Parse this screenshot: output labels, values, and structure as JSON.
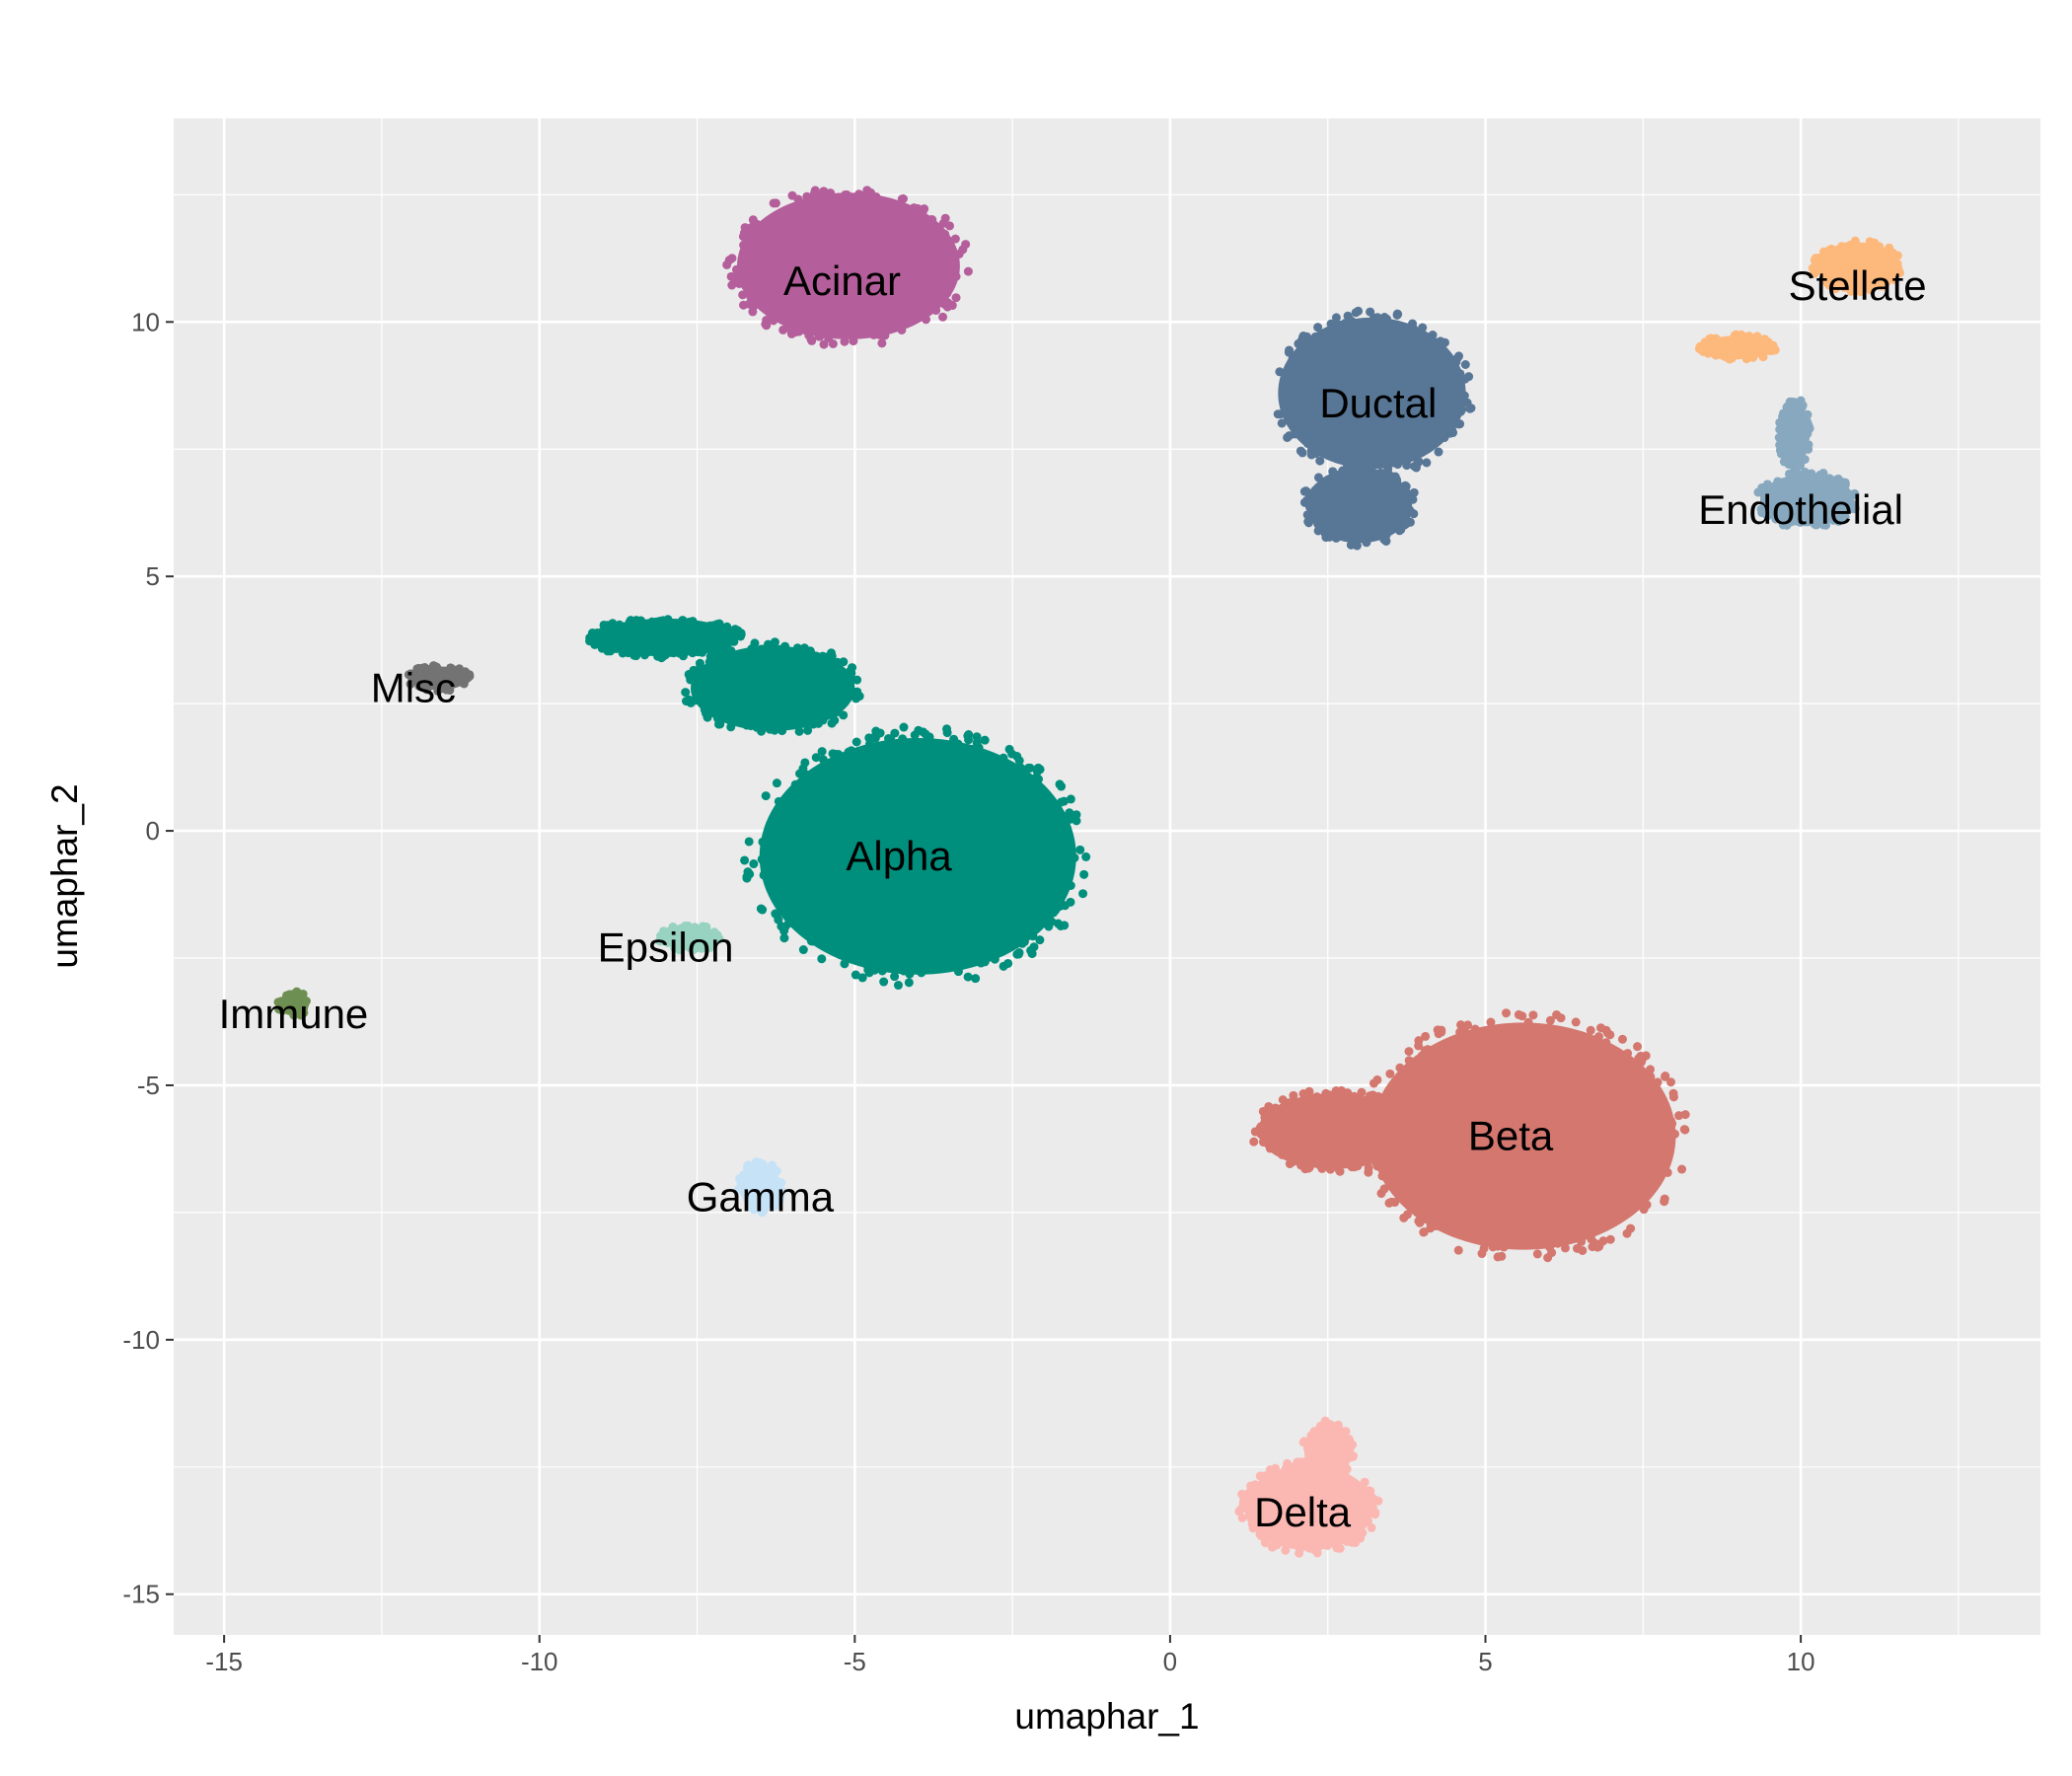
{
  "chart_data": {
    "type": "scatter",
    "title": "",
    "xlabel": "umaphar_1",
    "ylabel": "umaphar_2",
    "xlim": [
      -15.8,
      13.8
    ],
    "ylim": [
      -15.8,
      14.0
    ],
    "x_ticks": [
      -15,
      -10,
      -5,
      0,
      5,
      10
    ],
    "y_ticks": [
      -15,
      -10,
      -5,
      0,
      5,
      10
    ],
    "x_tick_labels": [
      "-15",
      "-10",
      "-5",
      "0",
      "5",
      "10"
    ],
    "y_tick_labels": [
      "-15",
      "-10",
      "-5",
      "0",
      "5",
      "10"
    ],
    "grid": true,
    "legend": "none",
    "background_color": "#ebebeb",
    "grid_color": "#ffffff",
    "clusters": [
      {
        "name": "Acinar",
        "color": "#b45f9b",
        "label_x": -5.2,
        "label_y": 10.8,
        "blobs": [
          {
            "cx": -5.1,
            "cy": 11.1,
            "rx": 1.9,
            "ry": 1.55
          }
        ]
      },
      {
        "name": "Ductal",
        "color": "#587696",
        "label_x": 3.3,
        "label_y": 8.4,
        "blobs": [
          {
            "cx": 3.2,
            "cy": 8.6,
            "rx": 1.6,
            "ry": 1.6
          },
          {
            "cx": 3.0,
            "cy": 6.4,
            "rx": 0.9,
            "ry": 0.8
          }
        ]
      },
      {
        "name": "Stellate",
        "color": "#fdb87c",
        "label_x": 10.9,
        "label_y": 10.7,
        "blobs": [
          {
            "cx": 10.9,
            "cy": 11.1,
            "rx": 0.7,
            "ry": 0.5
          },
          {
            "cx": 9.0,
            "cy": 9.5,
            "rx": 0.6,
            "ry": 0.25
          }
        ]
      },
      {
        "name": "Endothelial",
        "color": "#87a8be",
        "label_x": 10.0,
        "label_y": 6.3,
        "blobs": [
          {
            "cx": 10.1,
            "cy": 6.5,
            "rx": 0.8,
            "ry": 0.55
          },
          {
            "cx": 9.9,
            "cy": 7.8,
            "rx": 0.25,
            "ry": 0.7
          }
        ]
      },
      {
        "name": "Alpha",
        "color": "#008f7c",
        "label_x": -4.3,
        "label_y": -0.5,
        "blobs": [
          {
            "cx": -4.0,
            "cy": -0.5,
            "rx": 2.7,
            "ry": 2.5
          },
          {
            "cx": -6.3,
            "cy": 2.8,
            "rx": 1.4,
            "ry": 0.9
          },
          {
            "cx": -8.0,
            "cy": 3.8,
            "rx": 1.2,
            "ry": 0.4
          }
        ]
      },
      {
        "name": "Epsilon",
        "color": "#98d2c0",
        "label_x": -8.0,
        "label_y": -2.3,
        "blobs": [
          {
            "cx": -7.6,
            "cy": -2.1,
            "rx": 0.5,
            "ry": 0.25
          }
        ]
      },
      {
        "name": "Misc",
        "color": "#737373",
        "label_x": -12.0,
        "label_y": 2.8,
        "blobs": [
          {
            "cx": -11.6,
            "cy": 3.0,
            "rx": 0.5,
            "ry": 0.25
          }
        ]
      },
      {
        "name": "Immune",
        "color": "#6e8f52",
        "label_x": -13.9,
        "label_y": -3.6,
        "blobs": [
          {
            "cx": -13.9,
            "cy": -3.4,
            "rx": 0.25,
            "ry": 0.25
          }
        ]
      },
      {
        "name": "Gamma",
        "color": "#c6e2f7",
        "label_x": -6.5,
        "label_y": -7.2,
        "blobs": [
          {
            "cx": -6.5,
            "cy": -7.0,
            "rx": 0.35,
            "ry": 0.5
          }
        ]
      },
      {
        "name": "Beta",
        "color": "#d4776f",
        "label_x": 5.4,
        "label_y": -6.0,
        "blobs": [
          {
            "cx": 5.6,
            "cy": -6.0,
            "rx": 2.6,
            "ry": 2.4
          },
          {
            "cx": 2.6,
            "cy": -5.9,
            "rx": 1.3,
            "ry": 0.8
          }
        ]
      },
      {
        "name": "Delta",
        "color": "#fbb8b3",
        "label_x": 2.1,
        "label_y": -13.4,
        "blobs": [
          {
            "cx": 2.2,
            "cy": -13.3,
            "rx": 1.1,
            "ry": 0.9
          },
          {
            "cx": 2.5,
            "cy": -12.2,
            "rx": 0.4,
            "ry": 0.6
          }
        ]
      }
    ]
  }
}
